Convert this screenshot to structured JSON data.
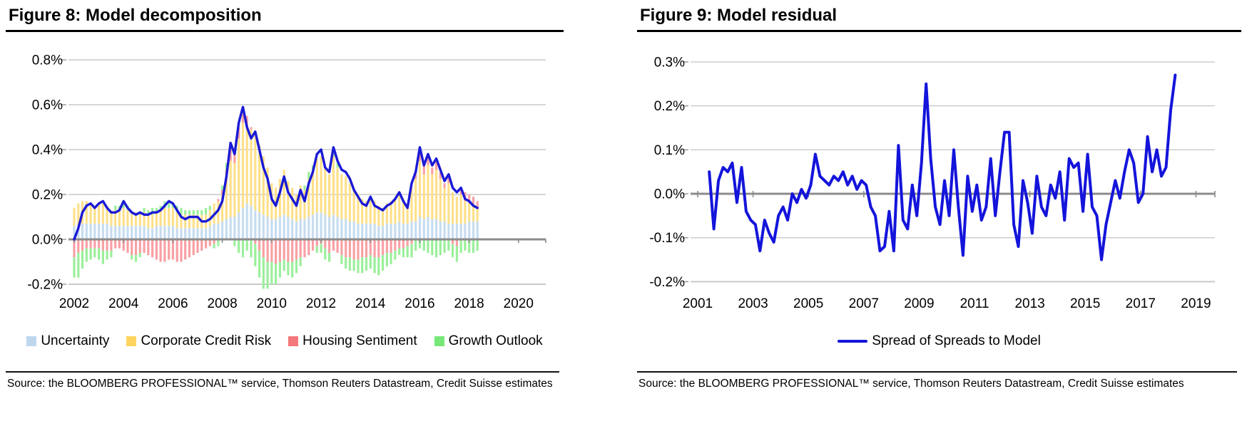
{
  "source_note": "Source: the BLOOMBERG PROFESSIONAL™ service, Thomson Reuters Datastream, Credit Suisse estimates",
  "chart_data": [
    {
      "type": "bar",
      "stacked": true,
      "title": "Figure 8: Model decomposition",
      "x_start": 2002.0,
      "x_step": 0.1667,
      "x_unit": "year (bimonthly points)",
      "ylim": [
        -0.25,
        0.85
      ],
      "grid": true,
      "legend_position": "bottom",
      "yticks": [
        {
          "v": 0.8,
          "label": "0.8%"
        },
        {
          "v": 0.6,
          "label": "0.6%"
        },
        {
          "v": 0.4,
          "label": "0.4%"
        },
        {
          "v": 0.2,
          "label": "0.2%"
        },
        {
          "v": 0.0,
          "label": "0.0%"
        },
        {
          "v": -0.2,
          "label": "-0.2%"
        }
      ],
      "xticks": [
        {
          "v": 2002,
          "label": "2002"
        },
        {
          "v": 2004,
          "label": "2004"
        },
        {
          "v": 2006,
          "label": "2006"
        },
        {
          "v": 2008,
          "label": "2008"
        },
        {
          "v": 2010,
          "label": "2010"
        },
        {
          "v": 2012,
          "label": "2012"
        },
        {
          "v": 2014,
          "label": "2014"
        },
        {
          "v": 2016,
          "label": "2016"
        },
        {
          "v": 2018,
          "label": "2018"
        },
        {
          "v": 2020,
          "label": "2020"
        }
      ],
      "series": [
        {
          "name": "Uncertainty",
          "role": "bar",
          "color": "#BDD7EE",
          "bar_color": "#C6DCF0",
          "values": [
            0.06,
            0.07,
            0.07,
            0.07,
            0.07,
            0.07,
            0.07,
            0.07,
            0.07,
            0.06,
            0.06,
            0.06,
            0.06,
            0.06,
            0.06,
            0.06,
            0.06,
            0.06,
            0.05,
            0.05,
            0.06,
            0.06,
            0.06,
            0.06,
            0.06,
            0.05,
            0.05,
            0.05,
            0.05,
            0.05,
            0.05,
            0.05,
            0.05,
            0.06,
            0.07,
            0.07,
            0.08,
            0.09,
            0.1,
            0.1,
            0.12,
            0.14,
            0.16,
            0.15,
            0.13,
            0.12,
            0.11,
            0.1,
            0.09,
            0.09,
            0.1,
            0.11,
            0.1,
            0.09,
            0.08,
            0.09,
            0.09,
            0.1,
            0.11,
            0.12,
            0.12,
            0.11,
            0.1,
            0.11,
            0.1,
            0.09,
            0.09,
            0.08,
            0.08,
            0.07,
            0.07,
            0.07,
            0.07,
            0.07,
            0.06,
            0.06,
            0.07,
            0.07,
            0.07,
            0.08,
            0.07,
            0.07,
            0.08,
            0.08,
            0.1,
            0.09,
            0.1,
            0.09,
            0.09,
            0.08,
            0.08,
            0.07,
            0.07,
            0.07,
            0.07,
            0.07,
            0.08,
            0.08,
            0.08
          ]
        },
        {
          "name": "Corporate Credit Risk",
          "role": "bar",
          "color": "#FFD45E",
          "bar_color": "#FFE08A",
          "values": [
            0.08,
            0.09,
            0.1,
            0.1,
            0.09,
            0.08,
            0.09,
            0.09,
            0.08,
            0.07,
            0.07,
            0.07,
            0.08,
            0.07,
            0.06,
            0.06,
            0.06,
            0.06,
            0.06,
            0.06,
            0.06,
            0.07,
            0.08,
            0.08,
            0.08,
            0.07,
            0.06,
            0.06,
            0.06,
            0.06,
            0.06,
            0.06,
            0.06,
            0.07,
            0.09,
            0.1,
            0.12,
            0.18,
            0.25,
            0.24,
            0.33,
            0.38,
            0.36,
            0.34,
            0.33,
            0.3,
            0.26,
            0.22,
            0.16,
            0.14,
            0.17,
            0.2,
            0.16,
            0.14,
            0.12,
            0.15,
            0.13,
            0.17,
            0.2,
            0.24,
            0.25,
            0.21,
            0.19,
            0.26,
            0.22,
            0.2,
            0.19,
            0.17,
            0.14,
            0.13,
            0.11,
            0.1,
            0.12,
            0.1,
            0.09,
            0.08,
            0.09,
            0.1,
            0.11,
            0.13,
            0.11,
            0.09,
            0.15,
            0.19,
            0.25,
            0.2,
            0.23,
            0.2,
            0.22,
            0.19,
            0.15,
            0.18,
            0.14,
            0.12,
            0.13,
            0.1,
            0.08,
            0.07,
            0.06
          ]
        },
        {
          "name": "Housing Sentiment",
          "role": "bar",
          "color": "#F4777B",
          "bar_color": "#F9A0A4",
          "values": [
            -0.08,
            -0.06,
            -0.05,
            -0.04,
            -0.04,
            -0.04,
            -0.04,
            -0.05,
            -0.05,
            -0.05,
            -0.04,
            -0.04,
            -0.05,
            -0.06,
            -0.07,
            -0.07,
            -0.06,
            -0.06,
            -0.07,
            -0.08,
            -0.09,
            -0.1,
            -0.1,
            -0.09,
            -0.09,
            -0.1,
            -0.1,
            -0.09,
            -0.08,
            -0.07,
            -0.06,
            -0.05,
            -0.04,
            -0.03,
            -0.02,
            0.01,
            0.02,
            0.04,
            0.05,
            0.04,
            0.05,
            0.04,
            0.03,
            0.01,
            -0.02,
            -0.05,
            -0.08,
            -0.1,
            -0.1,
            -0.11,
            -0.1,
            -0.09,
            -0.1,
            -0.1,
            -0.09,
            -0.08,
            -0.08,
            -0.07,
            -0.05,
            -0.03,
            -0.02,
            -0.04,
            -0.06,
            -0.05,
            -0.06,
            -0.07,
            -0.08,
            -0.08,
            -0.09,
            -0.09,
            -0.08,
            -0.08,
            -0.07,
            -0.08,
            -0.08,
            -0.07,
            -0.06,
            -0.06,
            -0.05,
            -0.04,
            -0.04,
            -0.03,
            -0.02,
            0.02,
            0.04,
            0.05,
            0.04,
            0.03,
            0.04,
            0.03,
            0.02,
            0.03,
            -0.02,
            -0.03,
            0.03,
            0.04,
            0.04,
            0.04,
            0.03
          ]
        },
        {
          "name": "Growth Outlook",
          "role": "bar",
          "color": "#77E877",
          "bar_color": "#9BEF9B",
          "values": [
            -0.09,
            -0.11,
            -0.08,
            -0.06,
            -0.05,
            -0.04,
            -0.05,
            -0.06,
            -0.04,
            -0.03,
            0.02,
            0.02,
            0.02,
            0.02,
            -0.02,
            -0.03,
            -0.02,
            0.02,
            0.02,
            0.03,
            0.02,
            0.02,
            0.03,
            0.03,
            0.02,
            0.03,
            0.03,
            0.02,
            0.02,
            0.02,
            0.02,
            0.02,
            0.03,
            0.02,
            -0.02,
            -0.03,
            0.02,
            0.03,
            0.02,
            -0.03,
            -0.06,
            -0.08,
            -0.05,
            -0.08,
            -0.1,
            -0.12,
            -0.14,
            -0.12,
            -0.1,
            -0.09,
            -0.07,
            -0.05,
            -0.06,
            -0.07,
            -0.06,
            -0.04,
            0.02,
            0.03,
            0.02,
            -0.03,
            -0.04,
            -0.05,
            -0.04,
            0.03,
            0.02,
            -0.04,
            -0.05,
            -0.06,
            -0.05,
            -0.06,
            -0.07,
            -0.06,
            -0.06,
            -0.07,
            -0.08,
            -0.07,
            -0.06,
            -0.05,
            -0.04,
            -0.03,
            -0.04,
            -0.05,
            -0.06,
            -0.05,
            -0.04,
            -0.05,
            -0.06,
            -0.07,
            -0.08,
            -0.07,
            -0.06,
            -0.05,
            -0.06,
            -0.07,
            -0.06,
            -0.05,
            -0.06,
            -0.06,
            -0.05
          ]
        },
        {
          "name": "Model (total)",
          "role": "line",
          "color": "#1A1AD6",
          "in_legend": false,
          "values": [
            0.0,
            0.05,
            0.12,
            0.15,
            0.16,
            0.14,
            0.16,
            0.17,
            0.14,
            0.12,
            0.12,
            0.13,
            0.17,
            0.14,
            0.12,
            0.11,
            0.12,
            0.11,
            0.11,
            0.12,
            0.12,
            0.13,
            0.15,
            0.17,
            0.16,
            0.13,
            0.1,
            0.09,
            0.1,
            0.1,
            0.1,
            0.08,
            0.08,
            0.09,
            0.11,
            0.13,
            0.17,
            0.28,
            0.43,
            0.38,
            0.52,
            0.59,
            0.5,
            0.45,
            0.48,
            0.4,
            0.32,
            0.27,
            0.18,
            0.15,
            0.21,
            0.28,
            0.21,
            0.18,
            0.15,
            0.22,
            0.17,
            0.25,
            0.3,
            0.38,
            0.4,
            0.32,
            0.3,
            0.41,
            0.35,
            0.31,
            0.3,
            0.27,
            0.22,
            0.19,
            0.16,
            0.15,
            0.19,
            0.15,
            0.14,
            0.13,
            0.15,
            0.16,
            0.18,
            0.21,
            0.17,
            0.14,
            0.25,
            0.3,
            0.41,
            0.33,
            0.38,
            0.33,
            0.36,
            0.31,
            0.26,
            0.29,
            0.23,
            0.21,
            0.23,
            0.18,
            0.17,
            0.15,
            0.14
          ]
        }
      ]
    },
    {
      "type": "line",
      "title": "Figure 9: Model residual",
      "x_start": 2001.417,
      "x_step": 0.1667,
      "x_unit": "year (bimonthly points)",
      "ylim": [
        -0.25,
        0.3
      ],
      "grid": true,
      "legend_position": "bottom",
      "yticks": [
        {
          "v": 0.3,
          "label": "0.3%"
        },
        {
          "v": 0.2,
          "label": "0.2%"
        },
        {
          "v": 0.1,
          "label": "0.1%"
        },
        {
          "v": 0.0,
          "label": "0.0%"
        },
        {
          "v": -0.1,
          "label": "-0.1%"
        },
        {
          "v": -0.2,
          "label": "-0.2%"
        }
      ],
      "xticks": [
        {
          "v": 2001,
          "label": "2001"
        },
        {
          "v": 2003,
          "label": "2003"
        },
        {
          "v": 2005,
          "label": "2005"
        },
        {
          "v": 2007,
          "label": "2007"
        },
        {
          "v": 2009,
          "label": "2009"
        },
        {
          "v": 2011,
          "label": "2011"
        },
        {
          "v": 2013,
          "label": "2013"
        },
        {
          "v": 2015,
          "label": "2015"
        },
        {
          "v": 2017,
          "label": "2017"
        },
        {
          "v": 2019,
          "label": "2019"
        }
      ],
      "series": [
        {
          "name": "Spread of Spreads to Model",
          "role": "line",
          "color": "#1414DB",
          "values": [
            0.05,
            -0.08,
            0.03,
            0.06,
            0.05,
            0.07,
            -0.02,
            0.06,
            -0.04,
            -0.06,
            -0.07,
            -0.13,
            -0.06,
            -0.09,
            -0.11,
            -0.05,
            -0.03,
            -0.06,
            0.0,
            -0.02,
            0.01,
            -0.01,
            0.02,
            0.09,
            0.04,
            0.03,
            0.02,
            0.04,
            0.03,
            0.05,
            0.02,
            0.04,
            0.01,
            0.03,
            0.02,
            -0.03,
            -0.05,
            -0.13,
            -0.12,
            -0.04,
            -0.13,
            0.11,
            -0.06,
            -0.08,
            0.02,
            -0.05,
            0.07,
            0.25,
            0.08,
            -0.03,
            -0.07,
            0.03,
            -0.05,
            0.1,
            -0.03,
            -0.14,
            0.04,
            -0.04,
            0.02,
            -0.06,
            -0.03,
            0.08,
            -0.05,
            0.05,
            0.14,
            0.14,
            -0.07,
            -0.12,
            0.03,
            -0.02,
            -0.09,
            0.04,
            -0.03,
            -0.05,
            0.02,
            -0.01,
            0.05,
            -0.06,
            0.08,
            0.06,
            0.07,
            -0.04,
            0.09,
            -0.03,
            -0.05,
            -0.15,
            -0.07,
            -0.02,
            0.03,
            -0.01,
            0.05,
            0.1,
            0.07,
            -0.02,
            0.0,
            0.13,
            0.05,
            0.1,
            0.04,
            0.06,
            0.19,
            0.27
          ]
        }
      ]
    }
  ]
}
